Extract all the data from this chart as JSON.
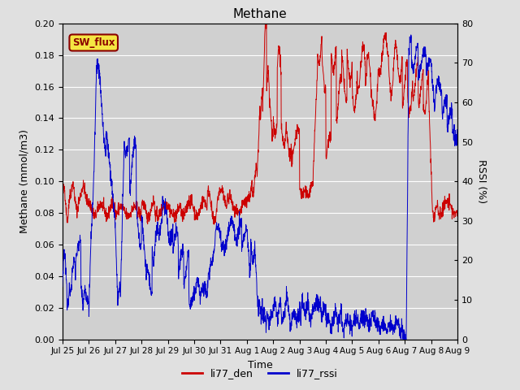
{
  "title": "Methane",
  "ylabel_left": "Methane (mmol/m3)",
  "ylabel_right": "RSSI (%)",
  "xlabel": "Time",
  "ylim_left": [
    0.0,
    0.2
  ],
  "ylim_right": [
    0,
    80
  ],
  "yticks_left": [
    0.0,
    0.02,
    0.04,
    0.06,
    0.08,
    0.1,
    0.12,
    0.14,
    0.16,
    0.18,
    0.2
  ],
  "yticks_right": [
    0,
    10,
    20,
    30,
    40,
    50,
    60,
    70,
    80
  ],
  "fig_bg_color": "#e0e0e0",
  "plot_bg_color": "#d0d0d0",
  "red_color": "#cc0000",
  "blue_color": "#0000cc",
  "sw_flux_bg": "#f5e642",
  "sw_flux_border": "#8b0000",
  "sw_flux_text": "#8b0000",
  "grid_color": "#ffffff",
  "legend_red_label": "li77_den",
  "legend_blue_label": "li77_rssi",
  "x_tick_positions": [
    0,
    1,
    2,
    3,
    4,
    5,
    6,
    7,
    8,
    9,
    10,
    11,
    12,
    13,
    14,
    15
  ],
  "x_tick_labels": [
    "Jul 25",
    "Jul 26",
    "Jul 27",
    "Jul 28",
    "Jul 29",
    "Jul 30",
    "Jul 31",
    "Aug 1",
    "Aug 2",
    "Aug 3",
    "Aug 4",
    "Aug 5",
    "Aug 6",
    "Aug 7",
    "Aug 8",
    "Aug 9"
  ]
}
